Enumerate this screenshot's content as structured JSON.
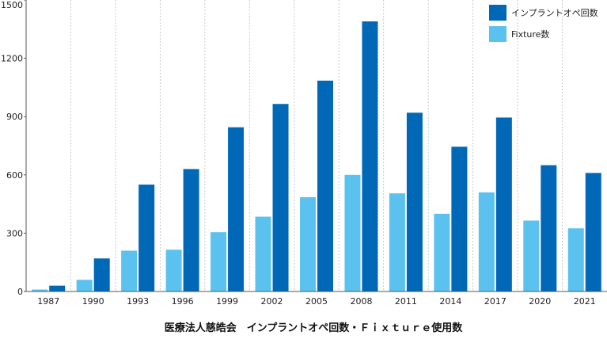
{
  "colors": {
    "series1": "#0068b7",
    "series2": "#5bc2ef",
    "grid": "#bfbfbf",
    "axis": "#555555"
  },
  "chart_data": {
    "type": "bar",
    "title": "医療法人慈皓会　インプラントオペ回数・Ｆｉｘｔｕｒｅ使用数",
    "xlabel": "",
    "ylabel": "",
    "ylim": [
      0,
      1500
    ],
    "yticks": [
      0,
      300,
      600,
      900,
      1200,
      1500
    ],
    "grid": "vertical dotted",
    "legend": "top-right",
    "categories": [
      "1987",
      "1990",
      "1993",
      "1996",
      "1999",
      "2002",
      "2005",
      "2008",
      "2011",
      "2014",
      "2017",
      "2020",
      "2021"
    ],
    "series": [
      {
        "name": "Fixture数",
        "color": "#5bc2ef",
        "values": [
          10,
          60,
          210,
          215,
          305,
          385,
          485,
          600,
          505,
          400,
          510,
          365,
          325
        ]
      },
      {
        "name": "インプラントオペ回数",
        "color": "#0068b7",
        "values": [
          30,
          170,
          550,
          630,
          845,
          965,
          1085,
          1390,
          920,
          745,
          895,
          650,
          610
        ]
      }
    ]
  }
}
